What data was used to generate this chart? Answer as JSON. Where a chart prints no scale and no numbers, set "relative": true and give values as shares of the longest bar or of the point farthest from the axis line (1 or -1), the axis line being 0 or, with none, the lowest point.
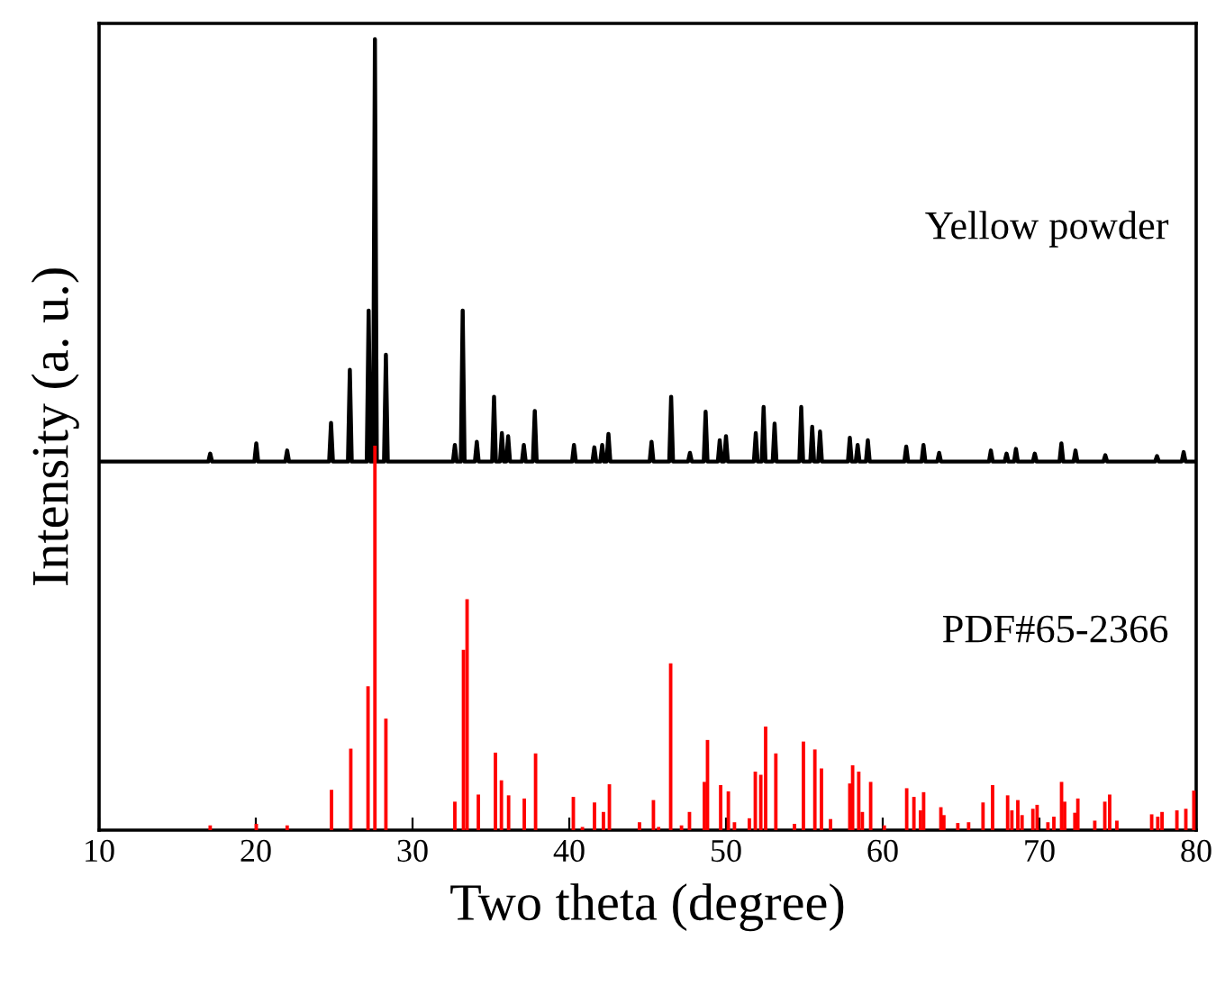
{
  "chart_data": {
    "type": "line",
    "xlabel": "Two theta (degree)",
    "ylabel": "Intensity (a. u.)",
    "relative": true,
    "xlim": [
      10,
      80
    ],
    "xticks": [
      10,
      20,
      30,
      40,
      50,
      60,
      70,
      80
    ],
    "tick_labels": "x",
    "grid": false,
    "legend": false,
    "annotations": [
      "Yellow powder",
      "PDF#65-2366"
    ],
    "series": [
      {
        "color": "#000000",
        "x": [
          10,
          16.97,
          17.09,
          17.21,
          19.91,
          20.03,
          20.15,
          21.88,
          22.0,
          22.12,
          24.68,
          24.8,
          24.92,
          25.88,
          26.0,
          26.12,
          27.08,
          27.2,
          27.32,
          27.48,
          27.6,
          27.72,
          28.18,
          28.3,
          28.42,
          32.58,
          32.7,
          32.82,
          33.08,
          33.2,
          33.32,
          33.98,
          34.1,
          34.22,
          35.08,
          35.2,
          35.32,
          35.58,
          35.7,
          35.82,
          35.98,
          36.1,
          36.22,
          36.98,
          37.1,
          37.22,
          37.68,
          37.8,
          37.92,
          40.18,
          40.3,
          40.42,
          41.48,
          41.6,
          41.72,
          41.98,
          42.1,
          42.22,
          42.38,
          42.5,
          42.62,
          45.13,
          45.25,
          45.37,
          46.38,
          46.5,
          46.62,
          47.58,
          47.7,
          47.82,
          48.58,
          48.7,
          48.82,
          49.48,
          49.6,
          49.72,
          49.88,
          50.0,
          50.12,
          51.78,
          51.9,
          52.02,
          52.28,
          52.4,
          52.52,
          52.98,
          53.1,
          53.22,
          54.68,
          54.8,
          54.92,
          55.38,
          55.5,
          55.62,
          55.88,
          56.0,
          56.12,
          57.78,
          57.9,
          58.02,
          58.28,
          58.4,
          58.52,
          58.93,
          59.05,
          59.17,
          61.38,
          61.5,
          61.62,
          62.48,
          62.6,
          62.72,
          63.48,
          63.6,
          63.72,
          66.78,
          66.9,
          67.02,
          67.78,
          67.9,
          68.02,
          68.38,
          68.5,
          68.62,
          69.58,
          69.7,
          69.82,
          71.28,
          71.4,
          71.52,
          72.18,
          72.3,
          72.42,
          74.08,
          74.2,
          74.32,
          77.38,
          77.5,
          77.62,
          79.08,
          79.2,
          79.32,
          80
        ],
        "values": [
          0.466,
          0.466,
          0.476,
          0.466,
          0.466,
          0.489,
          0.466,
          0.466,
          0.48,
          0.466,
          0.466,
          0.515,
          0.466,
          0.466,
          0.582,
          0.466,
          0.466,
          0.657,
          0.466,
          0.466,
          1.0,
          0.466,
          0.466,
          0.601,
          0.466,
          0.466,
          0.487,
          0.466,
          0.466,
          0.657,
          0.466,
          0.466,
          0.491,
          0.466,
          0.466,
          0.548,
          0.466,
          0.466,
          0.502,
          0.466,
          0.466,
          0.498,
          0.466,
          0.466,
          0.487,
          0.466,
          0.466,
          0.53,
          0.466,
          0.466,
          0.487,
          0.466,
          0.466,
          0.484,
          0.466,
          0.466,
          0.487,
          0.466,
          0.466,
          0.501,
          0.466,
          0.466,
          0.491,
          0.466,
          0.466,
          0.548,
          0.466,
          0.466,
          0.477,
          0.466,
          0.466,
          0.529,
          0.466,
          0.466,
          0.493,
          0.466,
          0.466,
          0.498,
          0.466,
          0.466,
          0.502,
          0.466,
          0.466,
          0.535,
          0.466,
          0.466,
          0.514,
          0.466,
          0.466,
          0.535,
          0.466,
          0.466,
          0.51,
          0.466,
          0.466,
          0.504,
          0.466,
          0.466,
          0.496,
          0.466,
          0.466,
          0.487,
          0.466,
          0.466,
          0.493,
          0.466,
          0.466,
          0.485,
          0.466,
          0.466,
          0.487,
          0.466,
          0.466,
          0.477,
          0.466,
          0.466,
          0.48,
          0.466,
          0.466,
          0.476,
          0.466,
          0.466,
          0.482,
          0.466,
          0.466,
          0.476,
          0.466,
          0.466,
          0.489,
          0.466,
          0.466,
          0.48,
          0.466,
          0.466,
          0.474,
          0.466,
          0.466,
          0.473,
          0.466,
          0.466,
          0.478,
          0.466,
          0.466
        ]
      },
      {
        "type": "bar",
        "color": "#ff0000",
        "x": [
          17.09,
          20.03,
          22.0,
          24.83,
          26.06,
          27.16,
          27.6,
          28.3,
          32.7,
          33.25,
          33.48,
          34.2,
          35.29,
          35.67,
          36.13,
          37.13,
          37.85,
          40.26,
          40.84,
          41.61,
          42.18,
          42.56,
          44.48,
          45.37,
          45.7,
          46.47,
          47.16,
          47.67,
          48.62,
          48.82,
          49.66,
          50.15,
          50.54,
          51.49,
          51.87,
          52.22,
          52.53,
          53.18,
          54.37,
          54.94,
          55.67,
          56.09,
          56.67,
          57.9,
          58.08,
          58.47,
          58.7,
          59.23,
          60.1,
          61.53,
          61.99,
          62.41,
          62.61,
          63.71,
          63.9,
          64.79,
          65.48,
          66.4,
          67.01,
          67.97,
          68.24,
          68.62,
          68.89,
          69.58,
          69.85,
          70.54,
          70.92,
          71.41,
          71.61,
          72.26,
          72.45,
          73.53,
          74.17,
          74.48,
          74.94,
          77.16,
          77.55,
          77.82,
          78.77,
          79.34,
          79.85
        ],
        "values": [
          0.006,
          0.008,
          0.006,
          0.051,
          0.103,
          0.182,
          0.486,
          0.141,
          0.036,
          0.228,
          0.292,
          0.045,
          0.098,
          0.063,
          0.044,
          0.04,
          0.097,
          0.042,
          0.004,
          0.035,
          0.023,
          0.058,
          0.01,
          0.038,
          0.004,
          0.211,
          0.006,
          0.023,
          0.061,
          0.114,
          0.057,
          0.049,
          0.01,
          0.015,
          0.074,
          0.07,
          0.131,
          0.097,
          0.008,
          0.112,
          0.102,
          0.078,
          0.014,
          0.059,
          0.082,
          0.074,
          0.023,
          0.061,
          0.006,
          0.053,
          0.042,
          0.025,
          0.048,
          0.029,
          0.019,
          0.009,
          0.01,
          0.035,
          0.057,
          0.044,
          0.025,
          0.038,
          0.019,
          0.027,
          0.032,
          0.01,
          0.017,
          0.061,
          0.036,
          0.022,
          0.04,
          0.012,
          0.036,
          0.045,
          0.012,
          0.02,
          0.017,
          0.023,
          0.025,
          0.027,
          0.05
        ]
      }
    ]
  }
}
